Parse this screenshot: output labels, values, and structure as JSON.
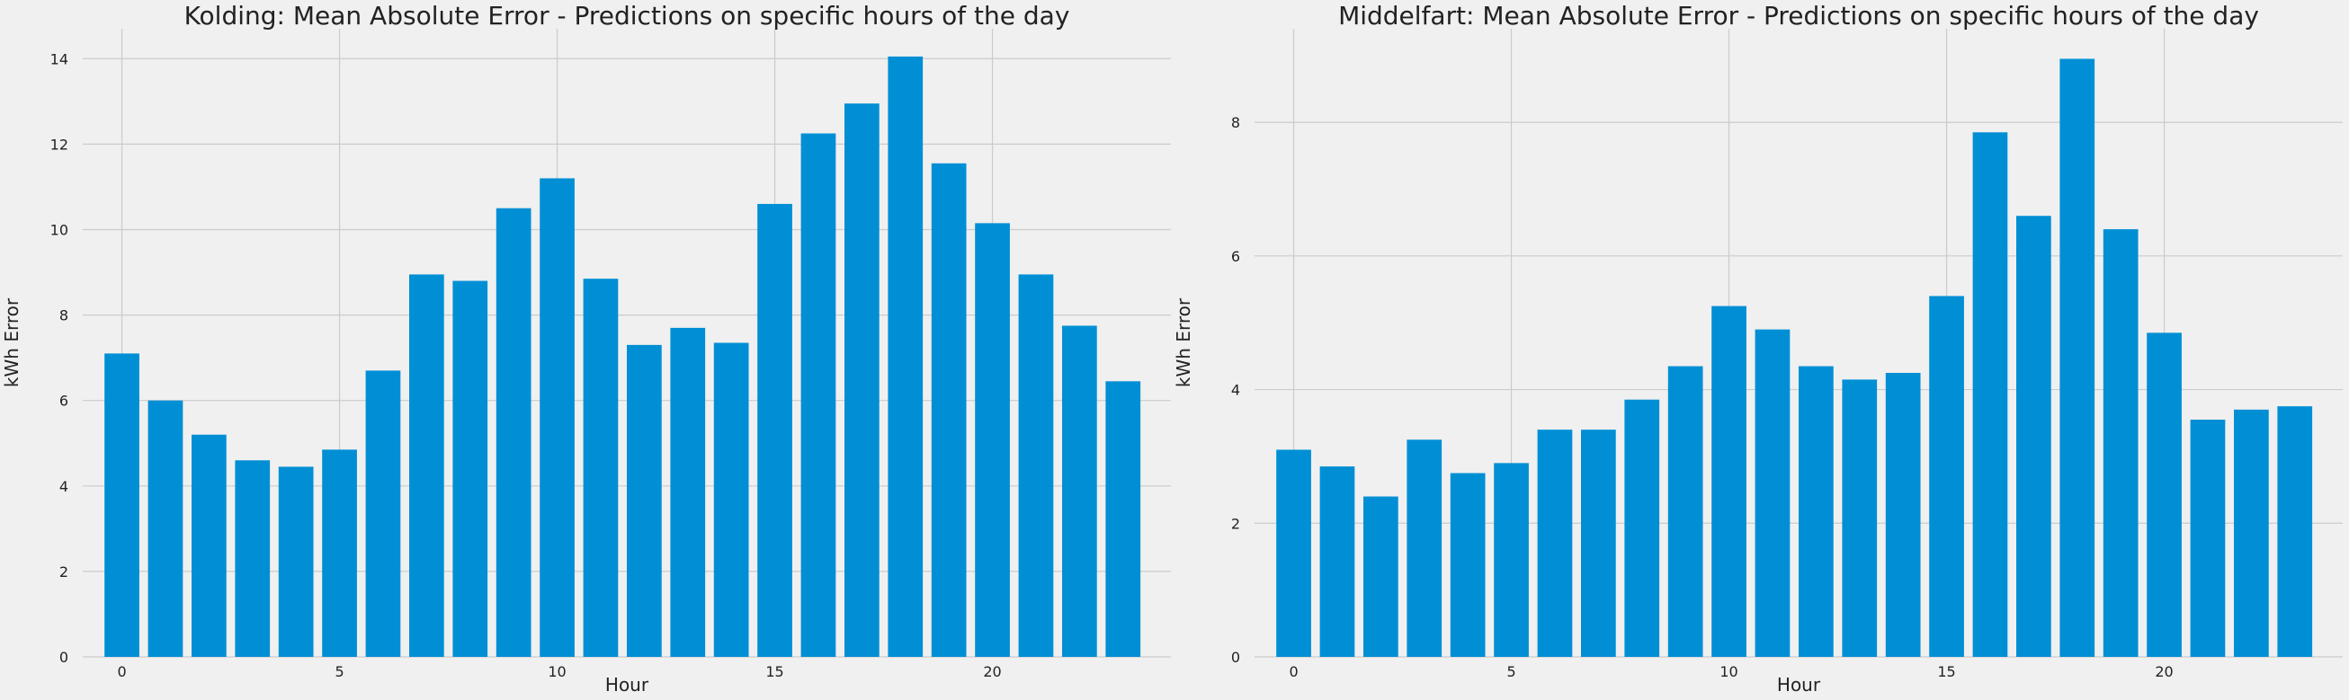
{
  "colors": {
    "background": "#f0f0f0",
    "bar": "#008fd5",
    "grid": "#cbcbcb",
    "text": "#222222"
  },
  "chart_data": [
    {
      "type": "bar",
      "title": "Kolding: Mean Absolute Error - Predictions on specific hours of the day",
      "xlabel": "Hour",
      "ylabel": "kWh Error",
      "x": [
        0,
        1,
        2,
        3,
        4,
        5,
        6,
        7,
        8,
        9,
        10,
        11,
        12,
        13,
        14,
        15,
        16,
        17,
        18,
        19,
        20,
        21,
        22,
        23
      ],
      "values": [
        7.1,
        6.0,
        5.2,
        4.6,
        4.45,
        4.85,
        6.7,
        8.95,
        8.8,
        10.5,
        11.2,
        8.85,
        7.3,
        7.7,
        7.35,
        10.6,
        12.25,
        12.95,
        14.05,
        11.55,
        10.15,
        8.95,
        7.75,
        6.45
      ],
      "xticks": [
        0,
        5,
        10,
        15,
        20
      ],
      "yticks": [
        0,
        2,
        4,
        6,
        8,
        10,
        12,
        14
      ],
      "xlim": [
        -0.9,
        24.1
      ],
      "ylim": [
        0,
        14.7
      ],
      "grid": true
    },
    {
      "type": "bar",
      "title": "Middelfart: Mean Absolute Error - Predictions on specific hours of the day",
      "xlabel": "Hour",
      "ylabel": "kWh Error",
      "x": [
        0,
        1,
        2,
        3,
        4,
        5,
        6,
        7,
        8,
        9,
        10,
        11,
        12,
        13,
        14,
        15,
        16,
        17,
        18,
        19,
        20,
        21,
        22,
        23
      ],
      "values": [
        3.1,
        2.85,
        2.4,
        3.25,
        2.75,
        2.9,
        3.4,
        3.4,
        3.85,
        4.35,
        5.25,
        4.9,
        4.35,
        4.15,
        4.25,
        5.4,
        7.85,
        6.6,
        8.95,
        6.4,
        4.85,
        3.55,
        3.7,
        3.75
      ],
      "xticks": [
        0,
        5,
        10,
        15,
        20
      ],
      "yticks": [
        0,
        2,
        4,
        6,
        8
      ],
      "xlim": [
        -0.9,
        24.1
      ],
      "ylim": [
        0,
        9.4
      ],
      "grid": true
    }
  ]
}
